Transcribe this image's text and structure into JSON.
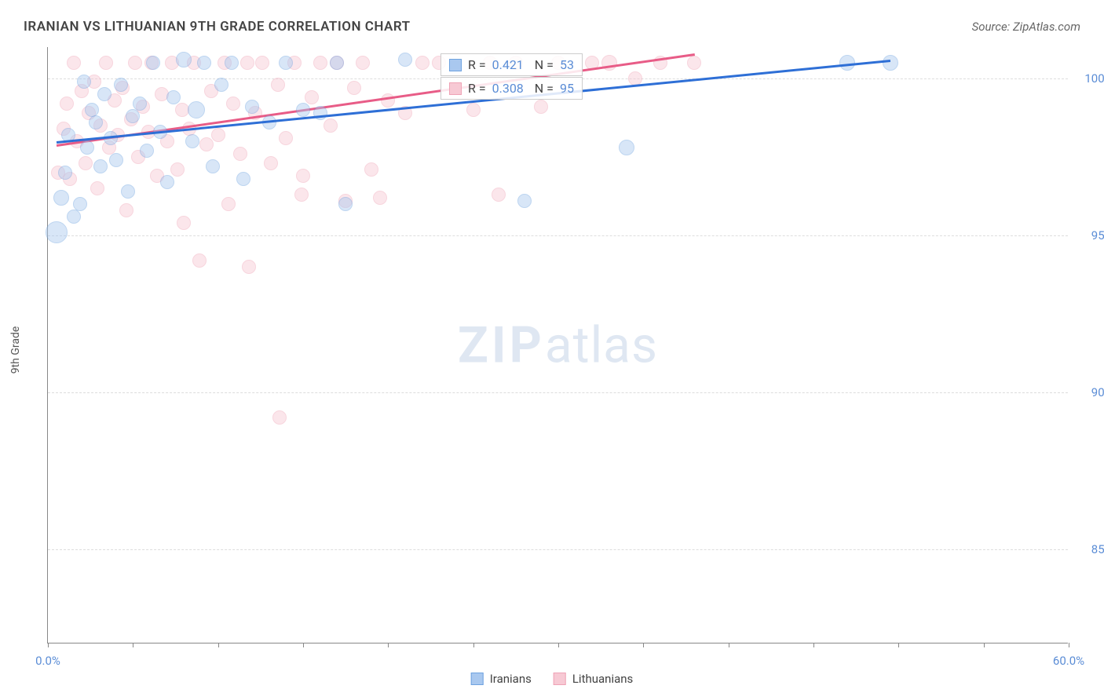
{
  "title": "IRANIAN VS LITHUANIAN 9TH GRADE CORRELATION CHART",
  "source": "Source: ZipAtlas.com",
  "watermark": {
    "bold": "ZIP",
    "rest": "atlas"
  },
  "y_axis_label": "9th Grade",
  "chart": {
    "type": "scatter",
    "xlim": [
      0,
      60
    ],
    "ylim": [
      82,
      101
    ],
    "x_ticks": [
      0,
      5,
      10,
      15,
      20,
      25,
      30,
      35,
      40,
      45,
      50,
      55,
      60
    ],
    "x_tick_labels": {
      "0": "0.0%",
      "60": "60.0%"
    },
    "y_ticks": [
      85,
      90,
      95,
      100
    ],
    "y_tick_labels": {
      "85": "85.0%",
      "90": "90.0%",
      "95": "95.0%",
      "100": "100.0%"
    },
    "grid_color": "#dddddd",
    "axis_color": "#888888",
    "background_color": "#ffffff",
    "marker_style": "circle",
    "marker_base_radius": 9,
    "marker_opacity": 0.45
  },
  "series": {
    "iranians": {
      "label": "Iranians",
      "fill_color": "#a9c8ef",
      "stroke_color": "#6fa3e0",
      "line_color": "#2e6fd6",
      "r_value": "0.421",
      "n_value": "53",
      "trend": {
        "x1": 0.5,
        "y1": 98.0,
        "x2": 49.5,
        "y2": 100.6
      },
      "points": [
        {
          "x": 0.5,
          "y": 95.1,
          "r": 14
        },
        {
          "x": 0.8,
          "y": 96.2,
          "r": 10
        },
        {
          "x": 1.0,
          "y": 97.0,
          "r": 9
        },
        {
          "x": 1.2,
          "y": 98.2,
          "r": 9
        },
        {
          "x": 1.5,
          "y": 95.6,
          "r": 9
        },
        {
          "x": 1.9,
          "y": 96.0,
          "r": 9
        },
        {
          "x": 2.1,
          "y": 99.9,
          "r": 9
        },
        {
          "x": 2.3,
          "y": 97.8,
          "r": 9
        },
        {
          "x": 2.6,
          "y": 99.0,
          "r": 9
        },
        {
          "x": 2.8,
          "y": 98.6,
          "r": 9
        },
        {
          "x": 3.1,
          "y": 97.2,
          "r": 9
        },
        {
          "x": 3.3,
          "y": 99.5,
          "r": 9
        },
        {
          "x": 3.7,
          "y": 98.1,
          "r": 9
        },
        {
          "x": 4.0,
          "y": 97.4,
          "r": 9
        },
        {
          "x": 4.3,
          "y": 99.8,
          "r": 9
        },
        {
          "x": 4.7,
          "y": 96.4,
          "r": 9
        },
        {
          "x": 5.0,
          "y": 98.8,
          "r": 9
        },
        {
          "x": 5.4,
          "y": 99.2,
          "r": 9
        },
        {
          "x": 5.8,
          "y": 97.7,
          "r": 9
        },
        {
          "x": 6.2,
          "y": 100.5,
          "r": 9
        },
        {
          "x": 6.6,
          "y": 98.3,
          "r": 9
        },
        {
          "x": 7.0,
          "y": 96.7,
          "r": 9
        },
        {
          "x": 7.4,
          "y": 99.4,
          "r": 9
        },
        {
          "x": 8.0,
          "y": 100.6,
          "r": 10
        },
        {
          "x": 8.5,
          "y": 98.0,
          "r": 9
        },
        {
          "x": 8.7,
          "y": 99.0,
          "r": 11
        },
        {
          "x": 9.2,
          "y": 100.5,
          "r": 9
        },
        {
          "x": 9.7,
          "y": 97.2,
          "r": 9
        },
        {
          "x": 10.2,
          "y": 99.8,
          "r": 9
        },
        {
          "x": 10.8,
          "y": 100.5,
          "r": 9
        },
        {
          "x": 11.5,
          "y": 96.8,
          "r": 9
        },
        {
          "x": 12.0,
          "y": 99.1,
          "r": 9
        },
        {
          "x": 13.0,
          "y": 98.6,
          "r": 9
        },
        {
          "x": 14.0,
          "y": 100.5,
          "r": 9
        },
        {
          "x": 15.0,
          "y": 99.0,
          "r": 9
        },
        {
          "x": 16.0,
          "y": 98.9,
          "r": 9
        },
        {
          "x": 17.0,
          "y": 100.5,
          "r": 9
        },
        {
          "x": 17.5,
          "y": 96.0,
          "r": 9
        },
        {
          "x": 21.0,
          "y": 100.6,
          "r": 9
        },
        {
          "x": 28.0,
          "y": 96.1,
          "r": 9
        },
        {
          "x": 34.0,
          "y": 97.8,
          "r": 10
        },
        {
          "x": 47.0,
          "y": 100.5,
          "r": 10
        },
        {
          "x": 49.5,
          "y": 100.5,
          "r": 10
        }
      ]
    },
    "lithuanians": {
      "label": "Lithuanians",
      "fill_color": "#f7c9d4",
      "stroke_color": "#efa3b6",
      "line_color": "#e85c87",
      "r_value": "0.308",
      "n_value": "95",
      "trend": {
        "x1": 0.5,
        "y1": 97.9,
        "x2": 38.0,
        "y2": 100.8
      },
      "points": [
        {
          "x": 0.6,
          "y": 97.0,
          "r": 9
        },
        {
          "x": 0.9,
          "y": 98.4,
          "r": 9
        },
        {
          "x": 1.1,
          "y": 99.2,
          "r": 9
        },
        {
          "x": 1.3,
          "y": 96.8,
          "r": 9
        },
        {
          "x": 1.5,
          "y": 100.5,
          "r": 9
        },
        {
          "x": 1.7,
          "y": 98.0,
          "r": 9
        },
        {
          "x": 2.0,
          "y": 99.6,
          "r": 9
        },
        {
          "x": 2.2,
          "y": 97.3,
          "r": 9
        },
        {
          "x": 2.4,
          "y": 98.9,
          "r": 9
        },
        {
          "x": 2.7,
          "y": 99.9,
          "r": 9
        },
        {
          "x": 2.9,
          "y": 96.5,
          "r": 9
        },
        {
          "x": 3.1,
          "y": 98.5,
          "r": 9
        },
        {
          "x": 3.4,
          "y": 100.5,
          "r": 9
        },
        {
          "x": 3.6,
          "y": 97.8,
          "r": 9
        },
        {
          "x": 3.9,
          "y": 99.3,
          "r": 9
        },
        {
          "x": 4.1,
          "y": 98.2,
          "r": 9
        },
        {
          "x": 4.4,
          "y": 99.7,
          "r": 9
        },
        {
          "x": 4.6,
          "y": 95.8,
          "r": 9
        },
        {
          "x": 4.9,
          "y": 98.7,
          "r": 9
        },
        {
          "x": 5.1,
          "y": 100.5,
          "r": 9
        },
        {
          "x": 5.3,
          "y": 97.5,
          "r": 9
        },
        {
          "x": 5.6,
          "y": 99.1,
          "r": 9
        },
        {
          "x": 5.9,
          "y": 98.3,
          "r": 9
        },
        {
          "x": 6.1,
          "y": 100.5,
          "r": 9
        },
        {
          "x": 6.4,
          "y": 96.9,
          "r": 9
        },
        {
          "x": 6.7,
          "y": 99.5,
          "r": 9
        },
        {
          "x": 7.0,
          "y": 98.0,
          "r": 9
        },
        {
          "x": 7.3,
          "y": 100.5,
          "r": 9
        },
        {
          "x": 7.6,
          "y": 97.1,
          "r": 9
        },
        {
          "x": 7.9,
          "y": 99.0,
          "r": 9
        },
        {
          "x": 8.0,
          "y": 95.4,
          "r": 9
        },
        {
          "x": 8.3,
          "y": 98.4,
          "r": 9
        },
        {
          "x": 8.6,
          "y": 100.5,
          "r": 9
        },
        {
          "x": 8.9,
          "y": 94.2,
          "r": 9
        },
        {
          "x": 9.3,
          "y": 97.9,
          "r": 9
        },
        {
          "x": 9.6,
          "y": 99.6,
          "r": 9
        },
        {
          "x": 10.0,
          "y": 98.2,
          "r": 9
        },
        {
          "x": 10.4,
          "y": 100.5,
          "r": 9
        },
        {
          "x": 10.6,
          "y": 96.0,
          "r": 9
        },
        {
          "x": 10.9,
          "y": 99.2,
          "r": 9
        },
        {
          "x": 11.3,
          "y": 97.6,
          "r": 9
        },
        {
          "x": 11.7,
          "y": 100.5,
          "r": 9
        },
        {
          "x": 11.8,
          "y": 94.0,
          "r": 9
        },
        {
          "x": 12.2,
          "y": 98.9,
          "r": 9
        },
        {
          "x": 12.6,
          "y": 100.5,
          "r": 9
        },
        {
          "x": 13.1,
          "y": 97.3,
          "r": 9
        },
        {
          "x": 13.5,
          "y": 99.8,
          "r": 9
        },
        {
          "x": 13.6,
          "y": 89.2,
          "r": 9
        },
        {
          "x": 14.0,
          "y": 98.1,
          "r": 9
        },
        {
          "x": 14.5,
          "y": 100.5,
          "r": 9
        },
        {
          "x": 14.9,
          "y": 96.3,
          "r": 9
        },
        {
          "x": 15.0,
          "y": 96.9,
          "r": 9
        },
        {
          "x": 15.5,
          "y": 99.4,
          "r": 9
        },
        {
          "x": 16.0,
          "y": 100.5,
          "r": 9
        },
        {
          "x": 16.6,
          "y": 98.5,
          "r": 9
        },
        {
          "x": 17.0,
          "y": 100.5,
          "r": 9
        },
        {
          "x": 17.5,
          "y": 96.1,
          "r": 9
        },
        {
          "x": 18.0,
          "y": 99.7,
          "r": 9
        },
        {
          "x": 18.5,
          "y": 100.5,
          "r": 9
        },
        {
          "x": 19.0,
          "y": 97.1,
          "r": 9
        },
        {
          "x": 19.5,
          "y": 96.2,
          "r": 9
        },
        {
          "x": 20.0,
          "y": 99.3,
          "r": 9
        },
        {
          "x": 21.0,
          "y": 98.9,
          "r": 9
        },
        {
          "x": 22.0,
          "y": 100.5,
          "r": 9
        },
        {
          "x": 23.0,
          "y": 100.5,
          "r": 9
        },
        {
          "x": 25.0,
          "y": 99.0,
          "r": 9
        },
        {
          "x": 26.0,
          "y": 100.5,
          "r": 9
        },
        {
          "x": 26.5,
          "y": 96.3,
          "r": 9
        },
        {
          "x": 27.5,
          "y": 100.5,
          "r": 9
        },
        {
          "x": 29.0,
          "y": 99.1,
          "r": 9
        },
        {
          "x": 30.0,
          "y": 100.5,
          "r": 9
        },
        {
          "x": 32.0,
          "y": 100.5,
          "r": 9
        },
        {
          "x": 33.0,
          "y": 100.5,
          "r": 10
        },
        {
          "x": 34.5,
          "y": 100.0,
          "r": 9
        },
        {
          "x": 36.0,
          "y": 100.5,
          "r": 9
        },
        {
          "x": 38.0,
          "y": 100.5,
          "r": 9
        }
      ]
    }
  },
  "stats_labels": {
    "r": "R =",
    "n": "N ="
  },
  "legend": {
    "items": [
      "iranians",
      "lithuanians"
    ]
  }
}
